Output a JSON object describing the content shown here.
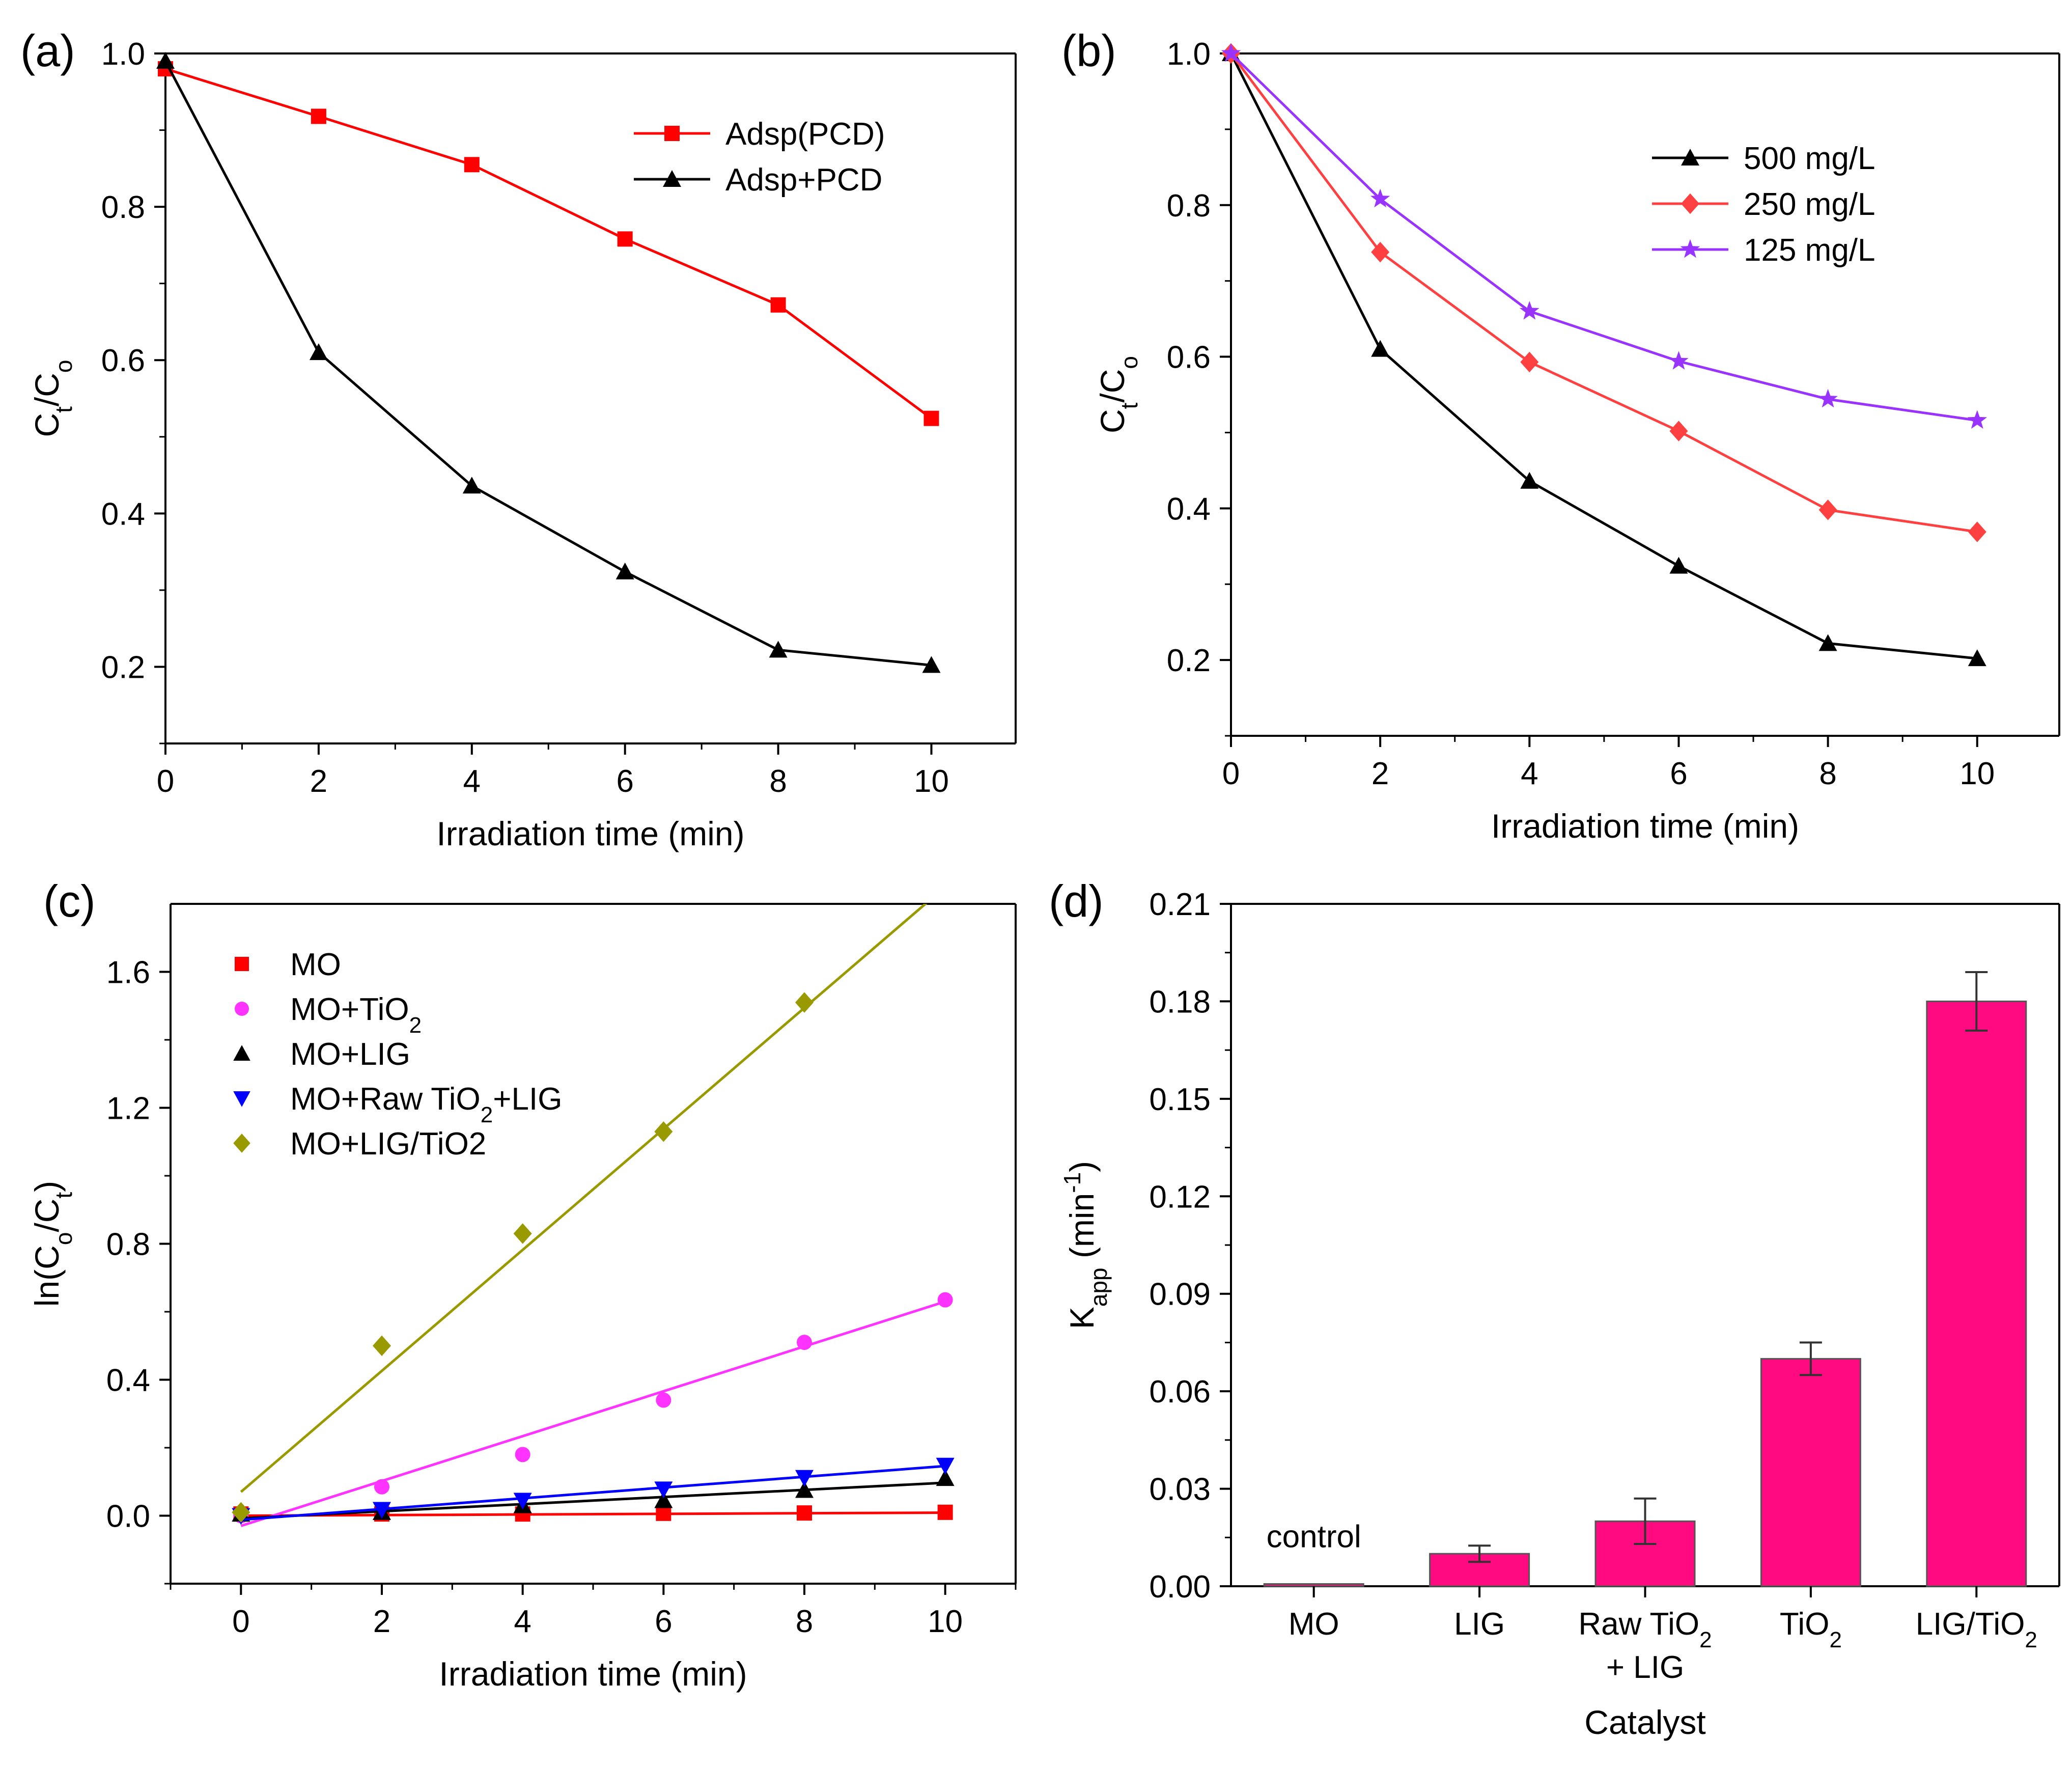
{
  "chart_data": [
    {
      "panel": "(a)",
      "type": "line",
      "x": [
        0,
        2,
        4,
        6,
        8,
        10
      ],
      "xlabel": "Irradiation time (min)",
      "ylabel": "Ct/Co",
      "ylabel_main": "C",
      "ylabel_sub1": "t",
      "ylabel_mid": "/C",
      "ylabel_sub2": "o",
      "xlim": [
        0,
        11.1
      ],
      "ylim": [
        0.1,
        1.0
      ],
      "xticks": [
        0,
        2,
        4,
        6,
        8,
        10
      ],
      "yticks": [
        0.2,
        0.4,
        0.6,
        0.8,
        1.0
      ],
      "ytick_labels": [
        "0.2",
        "0.4",
        "0.6",
        "0.8",
        "1.0"
      ],
      "legend_position": "top-right",
      "series": [
        {
          "name": "Adsp(PCD)",
          "color": "#ff0000",
          "marker": "square",
          "values": [
            0.98,
            0.918,
            0.855,
            0.758,
            0.672,
            0.524
          ]
        },
        {
          "name": "Adsp+PCD",
          "color": "#000000",
          "marker": "triangle-up",
          "values": [
            0.99,
            0.61,
            0.436,
            0.324,
            0.222,
            0.202
          ]
        }
      ]
    },
    {
      "panel": "(b)",
      "type": "line",
      "x": [
        0,
        2,
        4,
        6,
        8,
        10
      ],
      "xlabel": "Irradiation time (min)",
      "ylabel": "Ct/Co",
      "ylabel_main": "C",
      "ylabel_sub1": "t",
      "ylabel_mid": "/C",
      "ylabel_sub2": "o",
      "xlim": [
        0,
        11.1
      ],
      "ylim": [
        0.1,
        1.0
      ],
      "xticks": [
        0,
        2,
        4,
        6,
        8,
        10
      ],
      "yticks": [
        0.2,
        0.4,
        0.6,
        0.8,
        1.0
      ],
      "ytick_labels": [
        "0.2",
        "0.4",
        "0.6",
        "0.8",
        "1.0"
      ],
      "legend_position": "top-right",
      "series": [
        {
          "name": "500 mg/L",
          "color": "#000000",
          "marker": "triangle-up",
          "values": [
            1.0,
            0.61,
            0.436,
            0.324,
            0.222,
            0.202
          ]
        },
        {
          "name": "250 mg/L",
          "color": "#ff4040",
          "marker": "diamond",
          "values": [
            1.0,
            0.738,
            0.593,
            0.502,
            0.398,
            0.369
          ]
        },
        {
          "name": "125 mg/L",
          "color": "#9933ff",
          "marker": "star",
          "values": [
            1.0,
            0.808,
            0.66,
            0.594,
            0.544,
            0.516
          ]
        }
      ]
    },
    {
      "panel": "(c)",
      "type": "scatter",
      "x": [
        0,
        2,
        4,
        6,
        8,
        10
      ],
      "xlabel": "Irradiation time (min)",
      "ylabel": "ln(Co/Ct)",
      "ylabel_pre": "ln(C",
      "ylabel_sub1": "o",
      "ylabel_mid": "/C",
      "ylabel_sub2": "t",
      "ylabel_post": ")",
      "xlim": [
        -1,
        11
      ],
      "ylim": [
        -0.2,
        1.8
      ],
      "xticks": [
        0,
        2,
        4,
        6,
        8,
        10
      ],
      "yticks": [
        0.0,
        0.4,
        0.8,
        1.2,
        1.6
      ],
      "ytick_labels": [
        "0.0",
        "0.4",
        "0.8",
        "1.2",
        "1.6"
      ],
      "legend_position": "top-left",
      "series": [
        {
          "name": "MO",
          "name_main": "MO",
          "name_sub": "",
          "name_post": "",
          "color": "#ff0000",
          "marker": "square",
          "values": [
            0.005,
            0.005,
            0.005,
            0.007,
            0.008,
            0.01
          ],
          "fit": [
            0.0,
            0.0009
          ]
        },
        {
          "name": "MO+TiO2",
          "name_main": "MO+TiO",
          "name_sub": "2",
          "name_post": "",
          "color": "#ff33ff",
          "marker": "circle",
          "values": [
            0.0,
            0.085,
            0.18,
            0.34,
            0.51,
            0.635
          ],
          "fit": [
            -0.03,
            0.066
          ]
        },
        {
          "name": "MO+LIG",
          "name_main": "MO+LIG",
          "name_sub": "",
          "name_post": "",
          "color": "#000000",
          "marker": "triangle-up",
          "values": [
            0.005,
            0.01,
            0.03,
            0.045,
            0.075,
            0.11
          ],
          "fit": [
            -0.008,
            0.0105
          ]
        },
        {
          "name": "MO+Raw TiO2+LIG",
          "name_main": "MO+Raw TiO",
          "name_sub": "2",
          "name_post": "+LIG",
          "color": "#0000ff",
          "marker": "triangle-down",
          "values": [
            0.0,
            0.018,
            0.045,
            0.078,
            0.112,
            0.148
          ],
          "fit": [
            -0.012,
            0.0158
          ]
        },
        {
          "name": "MO+LIG/TiO2",
          "name_main": "MO+LIG/TiO2",
          "name_sub": "",
          "name_post": "",
          "color": "#999900",
          "marker": "diamond",
          "values": [
            0.01,
            0.5,
            0.83,
            1.13,
            1.51,
            null
          ],
          "fit": [
            0.07,
            0.178
          ]
        }
      ]
    },
    {
      "panel": "(d)",
      "type": "bar",
      "categories": [
        "MO",
        "LIG",
        "Raw TiO2 + LIG",
        "TiO2",
        "LIG/TiO2"
      ],
      "category_labels": [
        {
          "line1_main": "MO",
          "line1_sub": "",
          "line2": ""
        },
        {
          "line1_main": "LIG",
          "line1_sub": "",
          "line2": ""
        },
        {
          "line1_main": "Raw TiO",
          "line1_sub": "2",
          "line2": "+ LIG"
        },
        {
          "line1_main": "TiO",
          "line1_sub": "2",
          "line2": ""
        },
        {
          "line1_main": "LIG/TiO",
          "line1_sub": "2",
          "line2": ""
        }
      ],
      "values": [
        0.0007,
        0.01,
        0.02,
        0.07,
        0.18
      ],
      "errors": [
        0.0,
        0.0025,
        0.007,
        0.005,
        0.009
      ],
      "bar_color": "#ff0a80",
      "xlabel": "Catalyst",
      "ylabel": "Kapp (min-1)",
      "ylabel_main": "K",
      "ylabel_sub": "app",
      "ylabel_rest": " (min",
      "ylabel_sup": "-1",
      "ylabel_end": ")",
      "ylim": [
        0,
        0.21
      ],
      "yticks": [
        0.0,
        0.03,
        0.06,
        0.09,
        0.12,
        0.15,
        0.18,
        0.21
      ],
      "ytick_labels": [
        "0.00",
        "0.03",
        "0.06",
        "0.09",
        "0.12",
        "0.15",
        "0.18",
        "0.21"
      ],
      "annotation": "control"
    }
  ]
}
